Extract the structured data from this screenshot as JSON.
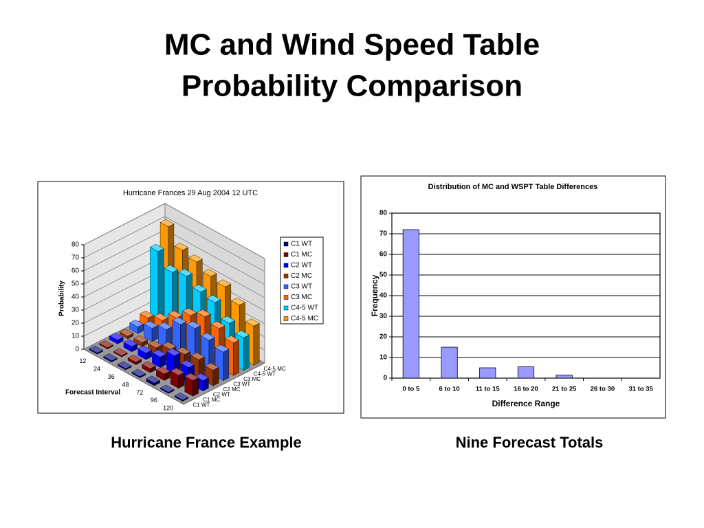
{
  "slide": {
    "title": [
      "MC and Wind Speed Table",
      "Probability Comparison"
    ]
  },
  "chart_data": [
    {
      "type": "bar3d",
      "title": "Hurricane Frances 29 Aug 2004 12 UTC",
      "caption": "Hurricane France Example",
      "categories": [
        "12",
        "24",
        "36",
        "48",
        "72",
        "96",
        "120"
      ],
      "series": [
        {
          "name": "C1 WT",
          "color": "#000080",
          "values": [
            1,
            1,
            1,
            1,
            2,
            1,
            1
          ]
        },
        {
          "name": "C1 MC",
          "color": "#800000",
          "values": [
            1,
            1,
            2,
            3,
            5,
            10,
            12
          ]
        },
        {
          "name": "C2 WT",
          "color": "#0000ff",
          "values": [
            3,
            4,
            5,
            8,
            15,
            12,
            8
          ]
        },
        {
          "name": "C2 MC",
          "color": "#993300",
          "values": [
            2,
            3,
            5,
            10,
            12,
            14,
            12
          ]
        },
        {
          "name": "C3 WT",
          "color": "#3366ff",
          "values": [
            5,
            10,
            15,
            25,
            28,
            25,
            22
          ]
        },
        {
          "name": "C3 MC",
          "color": "#ff6600",
          "values": [
            8,
            12,
            20,
            28,
            33,
            30,
            25
          ]
        },
        {
          "name": "C4-5 WT",
          "color": "#00ccff",
          "values": [
            55,
            45,
            48,
            42,
            40,
            30,
            25
          ]
        },
        {
          "name": "C4-5 MC",
          "color": "#ff9900",
          "values": [
            70,
            58,
            55,
            50,
            48,
            40,
            30
          ]
        }
      ],
      "ylabel": "Probability",
      "xlabel": "Forecast Interval",
      "ylim": [
        0,
        80
      ],
      "yticks": [
        0,
        10,
        20,
        30,
        40,
        50,
        60,
        70,
        80
      ],
      "grid": true,
      "legend": "right"
    },
    {
      "type": "bar",
      "title": "Distribution of MC and WSPT Table Differences",
      "caption": "Nine Forecast Totals",
      "categories": [
        "0 to 5",
        "6 to 10",
        "11 to 15",
        "16 to 20",
        "21 to 25",
        "26 to 30",
        "31 to 35"
      ],
      "values": [
        72,
        15,
        5,
        5.5,
        1.5,
        0,
        0
      ],
      "color": "#9999ff",
      "xlabel": "Difference Range",
      "ylabel": "Frequency",
      "ylim": [
        0,
        80
      ],
      "yticks": [
        0,
        10,
        20,
        30,
        40,
        50,
        60,
        70,
        80
      ],
      "grid": true
    }
  ]
}
